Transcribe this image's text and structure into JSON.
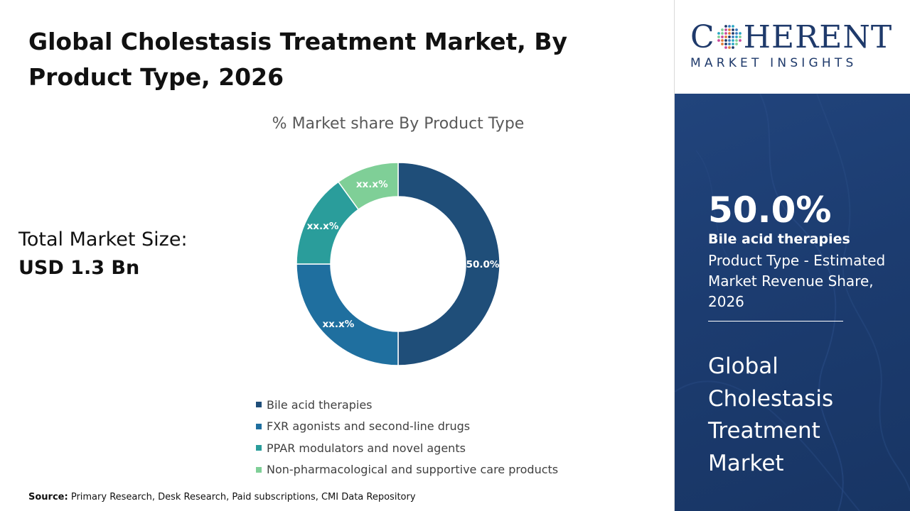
{
  "header": {
    "title": "Global Cholestasis Treatment Market, By Product Type, 2026"
  },
  "market_size": {
    "label": "Total Market Size:",
    "value": "USD 1.3 Bn"
  },
  "chart_data": {
    "type": "pie",
    "donut": true,
    "title": "% Market share By Product Type",
    "categories": [
      "Bile acid therapies",
      "FXR agonists and second-line drugs",
      "PPAR modulators and novel agents",
      "Non-pharmacological and supportive care products"
    ],
    "values": [
      50.0,
      25.0,
      15.0,
      10.0
    ],
    "data_labels": [
      "50.0%",
      "xx.x%",
      "xx.x%",
      "xx.x%"
    ],
    "colors": [
      "#1f4e79",
      "#1f6f9f",
      "#2a9d9b",
      "#7fcf97"
    ],
    "legend_position": "bottom"
  },
  "source": {
    "label": "Source:",
    "text": "Primary Research, Desk Research, Paid subscriptions, CMI Data Repository"
  },
  "logo": {
    "word_start": "C",
    "word_end": "HERENT",
    "subtitle": "MARKET INSIGHTS"
  },
  "highlight": {
    "percent": "50.0%",
    "segment": "Bile acid therapies",
    "description": "Product Type - Estimated Market Revenue Share, 2026"
  },
  "sidebar": {
    "market_name": "Global Cholestasis Treatment Market"
  },
  "colors": {
    "brand_navy": "#1f3a6b",
    "panel_blue": "#1c3c70"
  }
}
